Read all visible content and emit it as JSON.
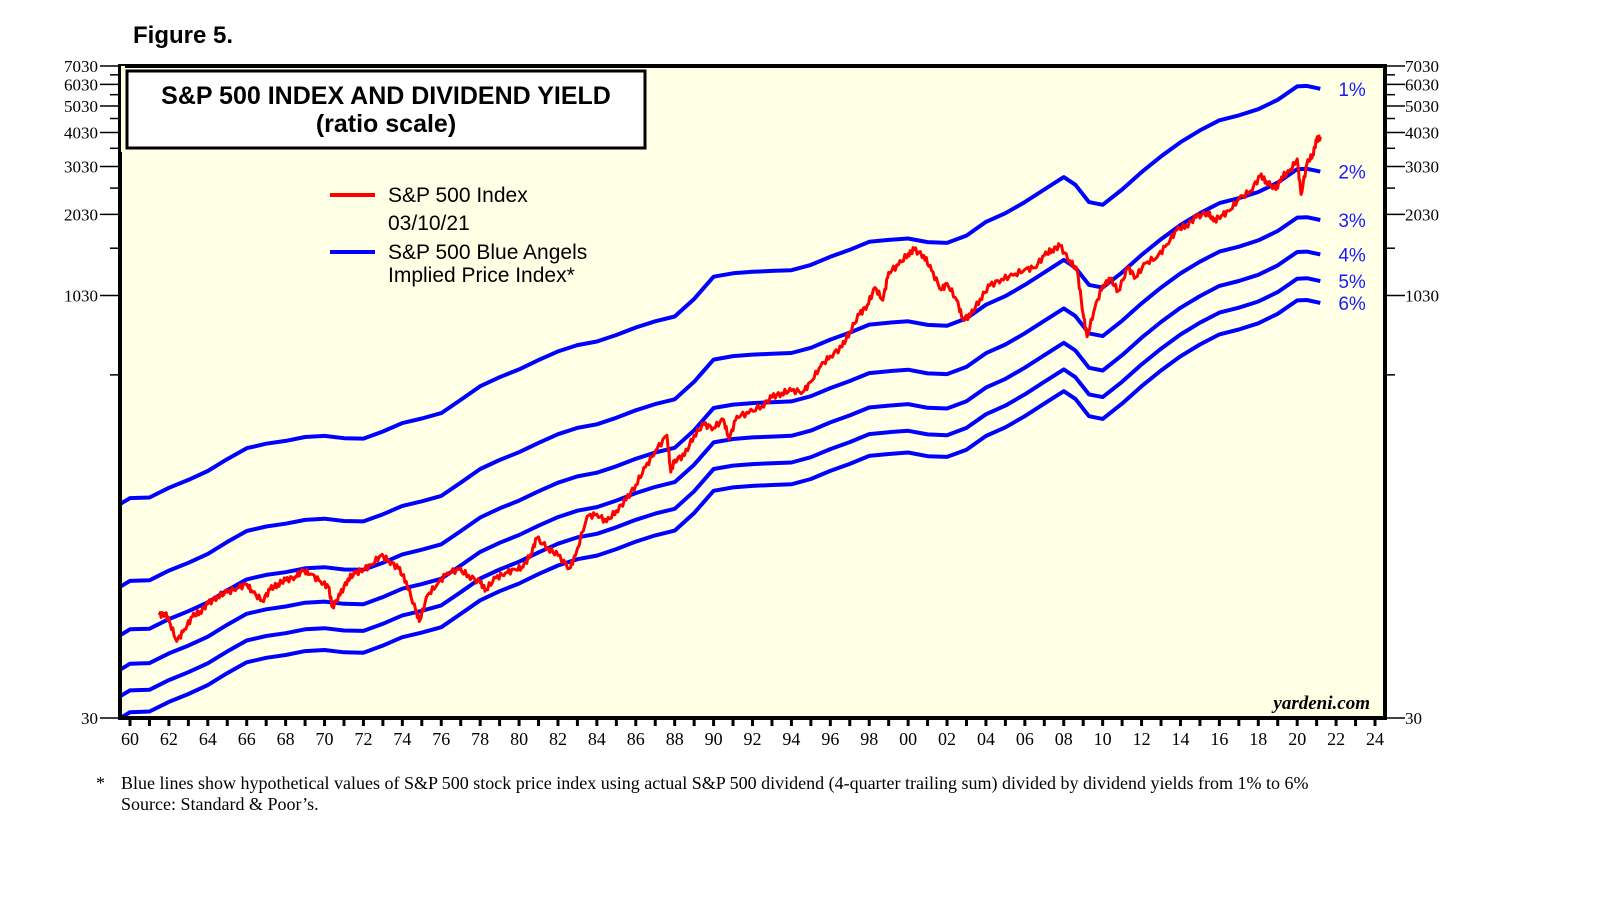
{
  "figure_label": "Figure 5.",
  "chart_data": {
    "type": "line",
    "title": "S&P 500 INDEX AND DIVIDEND YIELD",
    "subtitle": "(ratio scale)",
    "xlabel": "",
    "ylabel": "",
    "y_scale": "log",
    "ylim": [
      30,
      7030
    ],
    "xlim": [
      1959.5,
      2024.5
    ],
    "y_ticks": [
      30,
      1030,
      2030,
      3030,
      4030,
      5030,
      6030,
      7030
    ],
    "y_tick_labels": [
      "30",
      "1030",
      "2030",
      "3030",
      "4030",
      "5030",
      "6030",
      "7030"
    ],
    "x_ticks": [
      1960,
      1962,
      1964,
      1966,
      1968,
      1970,
      1972,
      1974,
      1976,
      1978,
      1980,
      1982,
      1984,
      1986,
      1988,
      1990,
      1992,
      1994,
      1996,
      1998,
      2000,
      2002,
      2004,
      2006,
      2008,
      2010,
      2012,
      2014,
      2016,
      2018,
      2020,
      2022,
      2024
    ],
    "x_tick_labels": [
      "60",
      "62",
      "64",
      "66",
      "68",
      "70",
      "72",
      "74",
      "76",
      "78",
      "80",
      "82",
      "84",
      "86",
      "88",
      "90",
      "92",
      "94",
      "96",
      "98",
      "00",
      "02",
      "04",
      "06",
      "08",
      "10",
      "12",
      "14",
      "16",
      "18",
      "20",
      "22",
      "24"
    ],
    "legend": {
      "placement": "top-left",
      "entries": [
        {
          "label": "S&P 500 Index",
          "sublabel": "03/10/21",
          "color": "#ff0000"
        },
        {
          "label": "S&P 500 Blue Angels",
          "sublabel": "Implied Price Index*",
          "color": "#0000ff"
        }
      ]
    },
    "watermark": "yardeni.com",
    "series": [
      {
        "name": "S&P 500 Index",
        "color": "#ff0000",
        "x": [
          1961.5,
          1961.8,
          1962.0,
          1962.4,
          1962.8,
          1963.2,
          1963.6,
          1964.0,
          1964.5,
          1965.0,
          1965.5,
          1966.0,
          1966.3,
          1966.8,
          1967.2,
          1967.6,
          1968.0,
          1968.5,
          1968.9,
          1969.3,
          1969.8,
          1970.2,
          1970.4,
          1970.8,
          1971.2,
          1971.6,
          1972.0,
          1972.4,
          1972.9,
          1973.3,
          1973.8,
          1974.2,
          1974.7,
          1974.9,
          1975.3,
          1975.8,
          1976.3,
          1976.9,
          1977.4,
          1978.0,
          1978.3,
          1978.8,
          1979.3,
          1979.8,
          1980.2,
          1980.6,
          1980.9,
          1981.5,
          1982.0,
          1982.6,
          1982.9,
          1983.5,
          1984.0,
          1984.5,
          1985.0,
          1985.5,
          1986.0,
          1986.5,
          1987.0,
          1987.6,
          1987.8,
          1988.0,
          1988.5,
          1989.0,
          1989.5,
          1990.0,
          1990.5,
          1990.8,
          1991.2,
          1991.8,
          1992.5,
          1993.0,
          1993.5,
          1994.0,
          1994.6,
          1995.0,
          1995.5,
          1996.0,
          1996.6,
          1997.0,
          1997.5,
          1997.9,
          1998.3,
          1998.7,
          1999.0,
          1999.5,
          2000.0,
          2000.3,
          2000.8,
          2001.2,
          2001.7,
          2002.0,
          2002.5,
          2002.8,
          2003.2,
          2003.7,
          2004.2,
          2004.8,
          2005.4,
          2006.0,
          2006.5,
          2007.0,
          2007.4,
          2007.8,
          2008.3,
          2008.7,
          2009.0,
          2009.2,
          2009.6,
          2010.0,
          2010.4,
          2010.8,
          2011.3,
          2011.7,
          2012.2,
          2012.8,
          2013.3,
          2013.8,
          2014.3,
          2014.8,
          2015.4,
          2015.7,
          2016.1,
          2016.5,
          2017.0,
          2017.6,
          2018.1,
          2018.4,
          2018.9,
          2019.2,
          2019.6,
          2020.0,
          2020.2,
          2020.5,
          2020.8,
          2021.0,
          2021.19
        ],
        "values": [
          71,
          72,
          68,
          57,
          63,
          70,
          73,
          78,
          83,
          86,
          89,
          92,
          86,
          80,
          88,
          92,
          95,
          98,
          103,
          100,
          94,
          90,
          76,
          84,
          96,
          101,
          104,
          108,
          117,
          112,
          105,
          94,
          73,
          68,
          84,
          92,
          101,
          104,
          99,
          93,
          88,
          97,
          101,
          104,
          106,
          118,
          135,
          124,
          117,
          105,
          117,
          162,
          165,
          155,
          170,
          186,
          211,
          245,
          280,
          320,
          235,
          260,
          270,
          320,
          350,
          340,
          365,
          310,
          375,
          385,
          410,
          440,
          455,
          465,
          460,
          500,
          570,
          620,
          670,
          760,
          880,
          950,
          1100,
          990,
          1250,
          1330,
          1460,
          1510,
          1440,
          1270,
          1080,
          1140,
          990,
          850,
          870,
          1000,
          1120,
          1180,
          1220,
          1280,
          1300,
          1440,
          1510,
          1560,
          1380,
          1260,
          880,
          730,
          930,
          1120,
          1180,
          1070,
          1300,
          1200,
          1350,
          1420,
          1580,
          1780,
          1850,
          1980,
          2070,
          1920,
          2010,
          2090,
          2310,
          2470,
          2800,
          2680,
          2500,
          2780,
          2900,
          3230,
          2400,
          3100,
          3350,
          3780,
          3890
        ]
      },
      {
        "name": "Blue Angels 1%",
        "yield_pct": 1,
        "color": "#0000ff",
        "x": [
          1959.5,
          1960.0,
          1961.0,
          1962.0,
          1963.0,
          1964.0,
          1965.0,
          1966.0,
          1967.0,
          1968.0,
          1969.0,
          1970.0,
          1971.0,
          1972.0,
          1973.0,
          1974.0,
          1975.0,
          1976.0,
          1977.0,
          1978.0,
          1979.0,
          1980.0,
          1981.0,
          1982.0,
          1983.0,
          1984.0,
          1985.0,
          1986.0,
          1987.0,
          1988.0,
          1989.0,
          1990.0,
          1991.0,
          1992.0,
          1993.0,
          1994.0,
          1995.0,
          1996.0,
          1997.0,
          1998.0,
          1999.0,
          2000.0,
          2001.0,
          2002.0,
          2003.0,
          2004.0,
          2005.0,
          2006.0,
          2007.0,
          2008.0,
          2008.6,
          2009.3,
          2010.0,
          2011.0,
          2012.0,
          2013.0,
          2014.0,
          2015.0,
          2016.0,
          2017.0,
          2018.0,
          2019.0,
          2020.0,
          2020.5,
          2021.19
        ],
        "values": [
          180,
          189,
          190,
          206,
          220,
          237,
          262,
          287,
          298,
          305,
          315,
          318,
          312,
          311,
          330,
          354,
          368,
          385,
          430,
          482,
          520,
          555,
          600,
          645,
          680,
          701,
          740,
          788,
          830,
          864,
          1000,
          1205,
          1240,
          1256,
          1265,
          1273,
          1330,
          1424,
          1510,
          1614,
          1640,
          1660,
          1610,
          1600,
          1700,
          1906,
          2050,
          2251,
          2500,
          2774,
          2600,
          2250,
          2200,
          2500,
          2893,
          3300,
          3716,
          4100,
          4463,
          4650,
          4898,
          5300,
          5929,
          5950,
          5810
        ]
      }
    ],
    "implied_yield_lines": {
      "note": "Yield k% line = 1% line values / k",
      "yields_pct": [
        1,
        2,
        3,
        4,
        5,
        6
      ],
      "labels": [
        "1%",
        "2%",
        "3%",
        "4%",
        "5%",
        "6%"
      ]
    }
  },
  "footnote": {
    "marker": "*",
    "text": "Blue lines show hypothetical values of S&P 500 stock price index using actual S&P 500 dividend (4-quarter trailing sum) divided by dividend yields from 1% to 6%",
    "source": "Source: Standard & Poor’s."
  }
}
